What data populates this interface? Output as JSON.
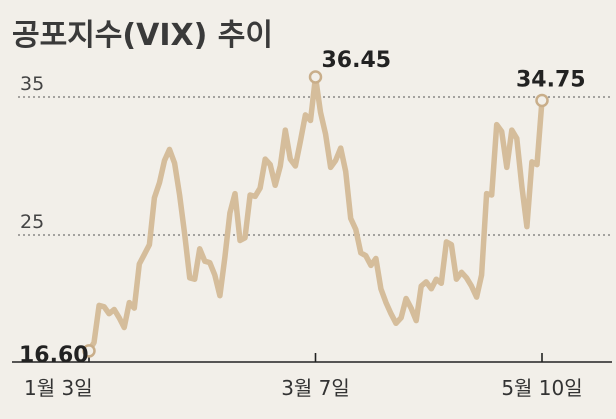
{
  "chart_data": {
    "type": "line",
    "title": "공포지수(VIX) 추이",
    "xlabel": "",
    "ylabel": "",
    "y_ticks": [
      25,
      35
    ],
    "x_tick_labels": [
      "1월 3일",
      "3월 7일",
      "5월 10일"
    ],
    "x_tick_index": [
      0,
      45,
      90
    ],
    "annotations": [
      {
        "index": 0,
        "label": "16.60"
      },
      {
        "index": 45,
        "label": "36.45"
      },
      {
        "index": 90,
        "label": "34.75"
      }
    ],
    "grid": "dashed-horizontal",
    "line_color": "#d5bd9b",
    "series": [
      {
        "values": [
          16.6,
          17.2,
          19.9,
          19.8,
          19.3,
          19.6,
          19.0,
          18.3,
          20.1,
          19.7,
          22.9,
          23.6,
          24.3,
          27.7,
          28.8,
          30.4,
          31.2,
          30.2,
          27.9,
          25.1,
          21.9,
          21.8,
          24.0,
          23.1,
          23.0,
          22.1,
          20.6,
          23.4,
          26.6,
          28.0,
          24.6,
          24.8,
          27.9,
          27.8,
          28.4,
          30.5,
          30.1,
          28.6,
          30.0,
          32.6,
          30.5,
          30.0,
          31.8,
          33.7,
          33.3,
          36.45,
          33.9,
          32.3,
          29.9,
          30.4,
          31.3,
          29.6,
          26.2,
          25.4,
          23.7,
          23.5,
          22.8,
          23.3,
          21.1,
          20.1,
          19.3,
          18.6,
          19.0,
          20.4,
          19.7,
          18.8,
          21.3,
          21.6,
          21.1,
          21.8,
          21.5,
          24.5,
          24.3,
          21.8,
          22.3,
          21.9,
          21.3,
          20.5,
          22.1,
          28.0,
          27.9,
          33.0,
          32.5,
          29.9,
          32.6,
          32.0,
          28.5,
          25.6,
          30.3,
          30.1,
          34.75
        ]
      }
    ]
  }
}
